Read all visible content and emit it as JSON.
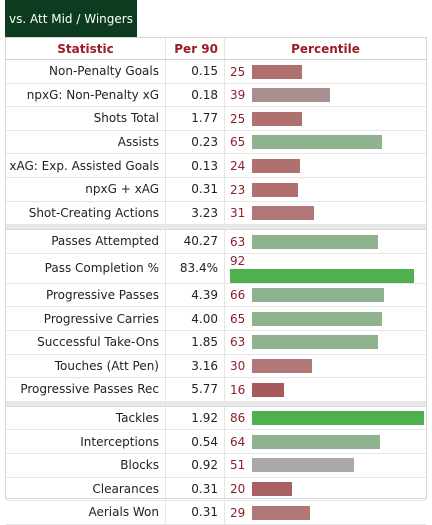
{
  "tab_label": "vs. Att Mid / Wingers",
  "headers": {
    "statistic": "Statistic",
    "per90": "Per 90",
    "percentile": "Percentile"
  },
  "colors": {
    "low": "#b07070",
    "mid_low": "#a89090",
    "mid": "#a9a9a9",
    "good": "#8fb38f",
    "elite": "#4eb04e"
  },
  "sections": [
    {
      "rows": [
        {
          "stat": "Non-Penalty Goals",
          "per90": "0.15",
          "percentile": "25",
          "color": "#b07070"
        },
        {
          "stat": "npxG: Non-Penalty xG",
          "per90": "0.18",
          "percentile": "39",
          "color": "#a89090"
        },
        {
          "stat": "Shots Total",
          "per90": "1.77",
          "percentile": "25",
          "color": "#b07070"
        },
        {
          "stat": "Assists",
          "per90": "0.23",
          "percentile": "65",
          "color": "#8fb38f"
        },
        {
          "stat": "xAG: Exp. Assisted Goals",
          "per90": "0.13",
          "percentile": "24",
          "color": "#b07070"
        },
        {
          "stat": "npxG + xAG",
          "per90": "0.31",
          "percentile": "23",
          "color": "#b07070"
        },
        {
          "stat": "Shot-Creating Actions",
          "per90": "3.23",
          "percentile": "31",
          "color": "#b07878"
        }
      ]
    },
    {
      "rows": [
        {
          "stat": "Passes Attempted",
          "per90": "40.27",
          "percentile": "63",
          "color": "#8fb38f"
        },
        {
          "stat": "Pass Completion %",
          "per90": "83.4%",
          "percentile": "92",
          "color": "#4eb04e"
        },
        {
          "stat": "Progressive Passes",
          "per90": "4.39",
          "percentile": "66",
          "color": "#8fb38f"
        },
        {
          "stat": "Progressive Carries",
          "per90": "4.00",
          "percentile": "65",
          "color": "#8fb38f"
        },
        {
          "stat": "Successful Take-Ons",
          "per90": "1.85",
          "percentile": "63",
          "color": "#8fb38f"
        },
        {
          "stat": "Touches (Att Pen)",
          "per90": "3.16",
          "percentile": "30",
          "color": "#b07878"
        },
        {
          "stat": "Progressive Passes Rec",
          "per90": "5.77",
          "percentile": "16",
          "color": "#a85a5a"
        }
      ]
    },
    {
      "rows": [
        {
          "stat": "Tackles",
          "per90": "1.92",
          "percentile": "86",
          "color": "#4eb04e"
        },
        {
          "stat": "Interceptions",
          "per90": "0.54",
          "percentile": "64",
          "color": "#8fb38f"
        },
        {
          "stat": "Blocks",
          "per90": "0.92",
          "percentile": "51",
          "color": "#a9a9a9"
        },
        {
          "stat": "Clearances",
          "per90": "0.31",
          "percentile": "20",
          "color": "#a86060"
        },
        {
          "stat": "Aerials Won",
          "per90": "0.31",
          "percentile": "29",
          "color": "#b07878"
        }
      ]
    }
  ]
}
